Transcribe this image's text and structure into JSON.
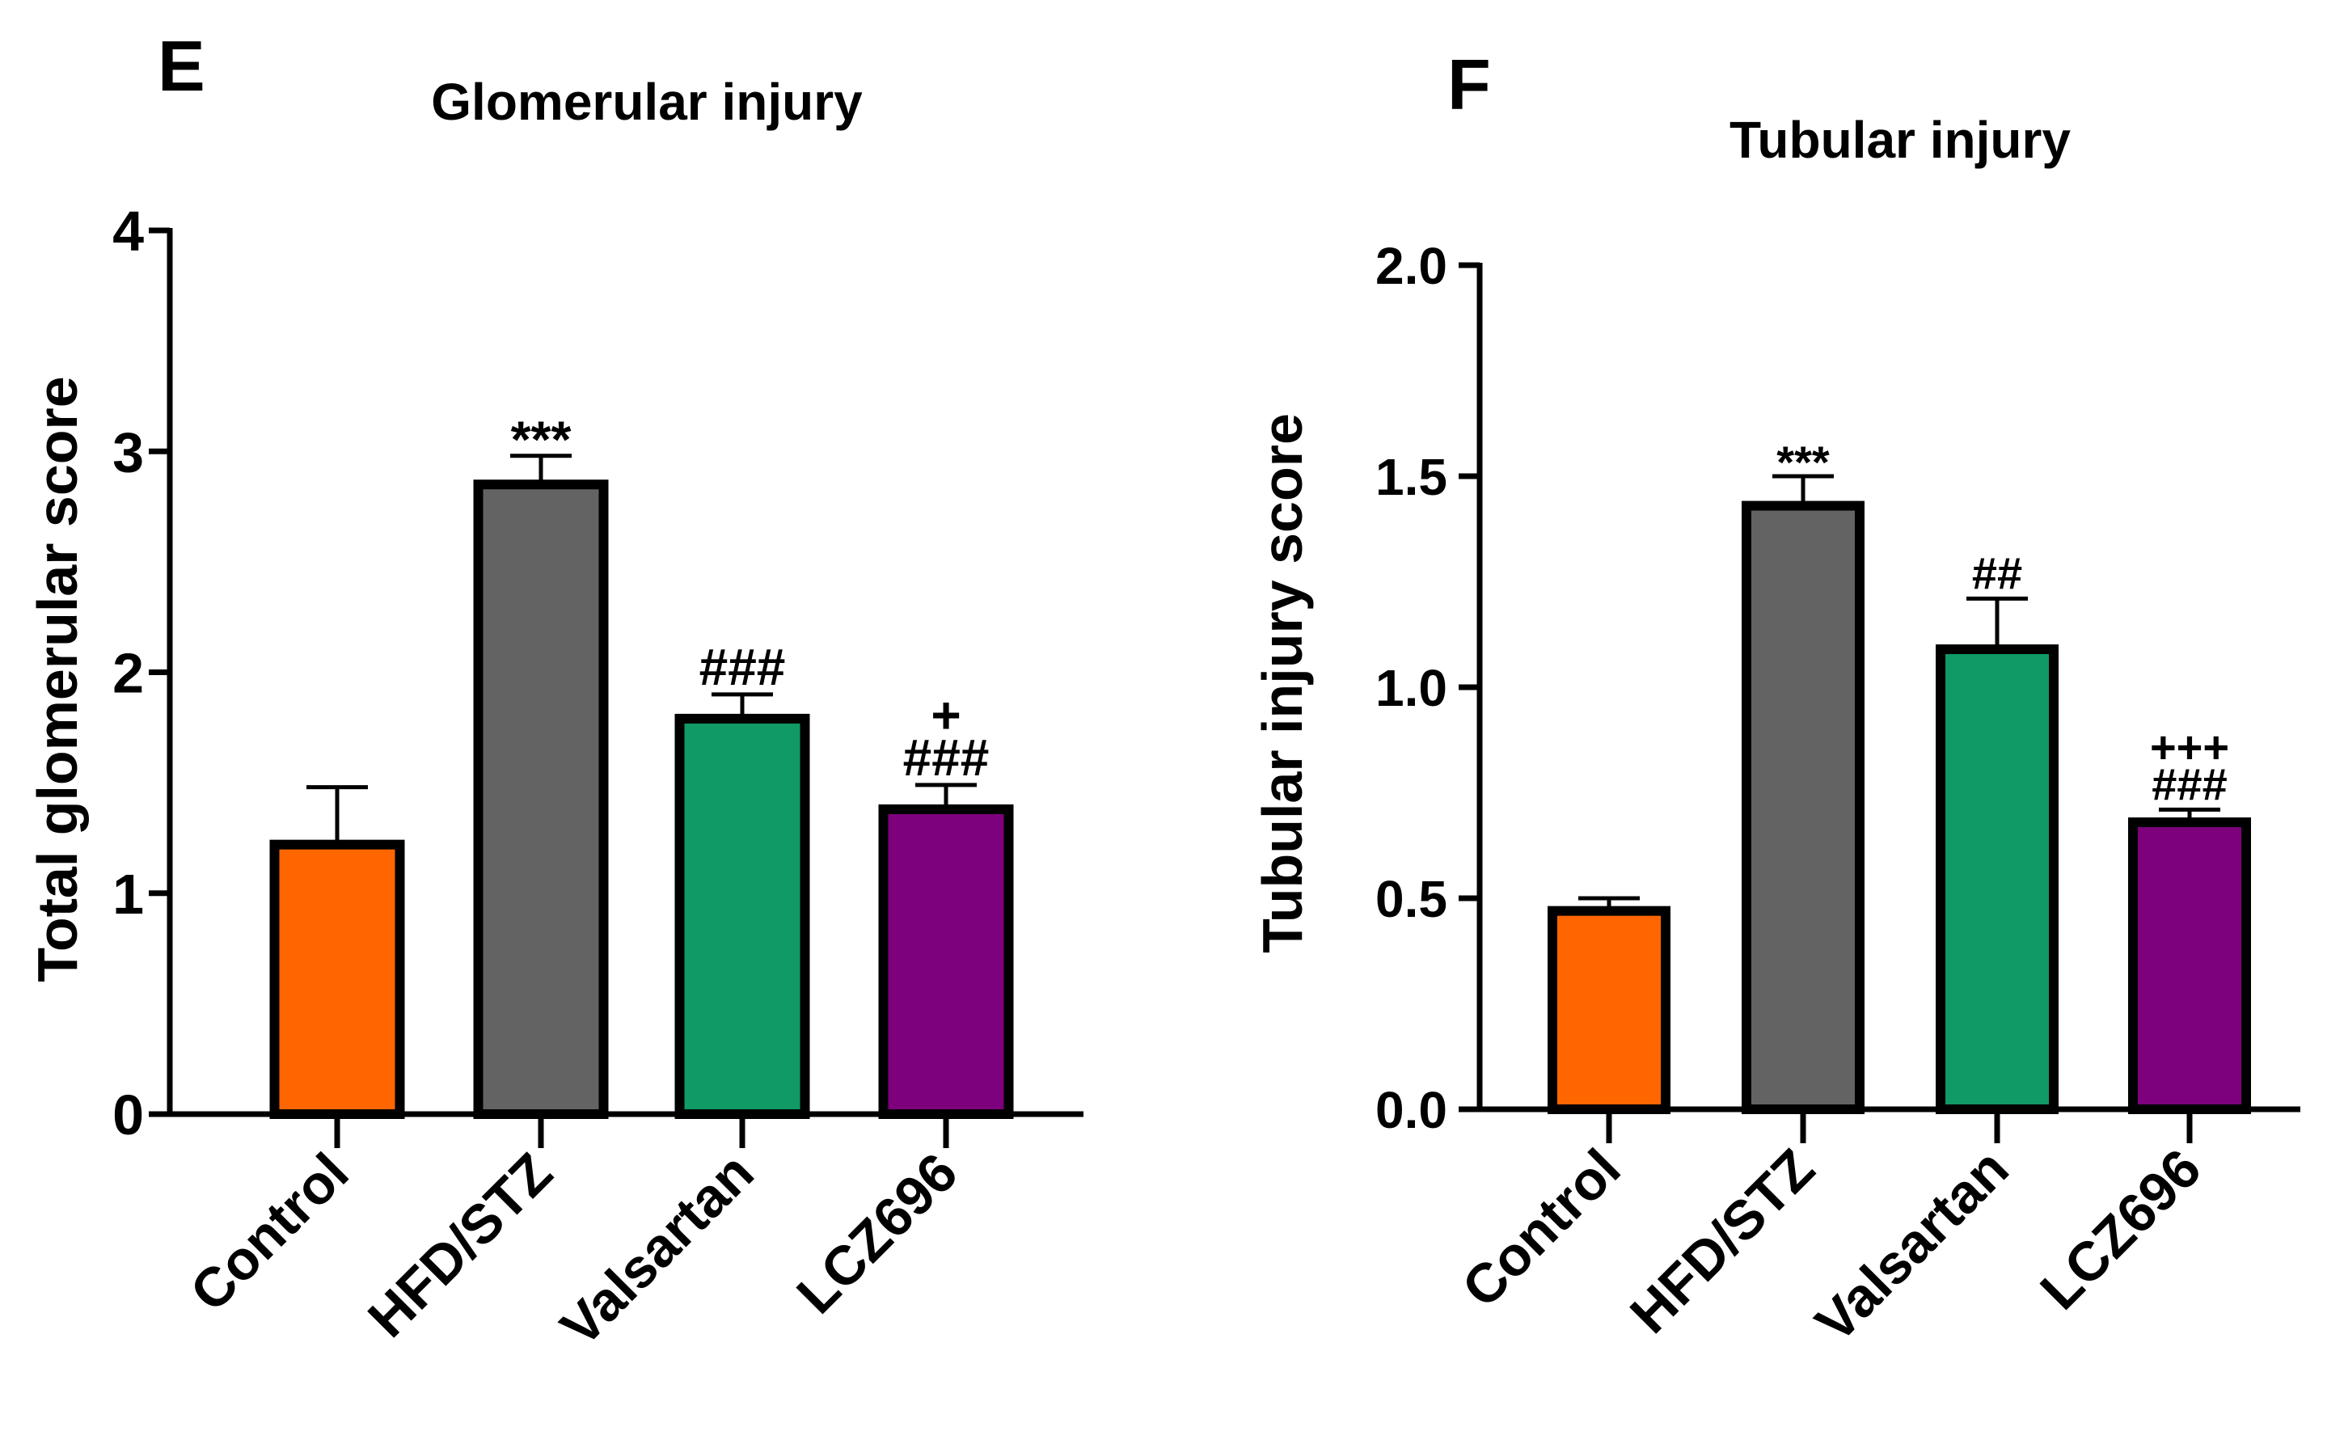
{
  "chart_data": [
    {
      "type": "bar",
      "panel_letter": "E",
      "title": "Glomerular injury",
      "xlabel": "",
      "ylabel": "Total glomerular score",
      "categories": [
        "Control",
        "HFD/STZ",
        "Valsartan",
        "LCZ696"
      ],
      "values": [
        1.22,
        2.85,
        1.79,
        1.38
      ],
      "errors": [
        0.26,
        0.13,
        0.11,
        0.11
      ],
      "colors": [
        "#ff6600",
        "#636363",
        "#109a65",
        "#7d007d"
      ],
      "significance": [
        "",
        "***",
        "###",
        "###"
      ],
      "significance_extra": [
        "",
        "",
        "",
        "+"
      ],
      "ylim": [
        0,
        4
      ],
      "yticks": [
        0,
        1,
        2,
        3,
        4
      ],
      "ytick_labels": [
        "0",
        "1",
        "2",
        "3",
        "4"
      ],
      "grid": false,
      "legend": "none"
    },
    {
      "type": "bar",
      "panel_letter": "F",
      "title": "Tubular injury",
      "xlabel": "",
      "ylabel": "Tubular injury score",
      "categories": [
        "Control",
        "HFD/STZ",
        "Valsartan",
        "LCZ696"
      ],
      "values": [
        0.47,
        1.43,
        1.09,
        0.68
      ],
      "errors": [
        0.03,
        0.07,
        0.12,
        0.03
      ],
      "colors": [
        "#ff6600",
        "#636363",
        "#109a65",
        "#7d007d"
      ],
      "significance": [
        "",
        "***",
        "##",
        "###"
      ],
      "significance_extra": [
        "",
        "",
        "",
        "+++"
      ],
      "ylim": [
        0,
        2
      ],
      "yticks": [
        0,
        0.5,
        1,
        1.5,
        2
      ],
      "ytick_labels": [
        "0.0",
        "0.5",
        "1.0",
        "1.5",
        "2.0"
      ],
      "grid": false,
      "legend": "none"
    }
  ]
}
